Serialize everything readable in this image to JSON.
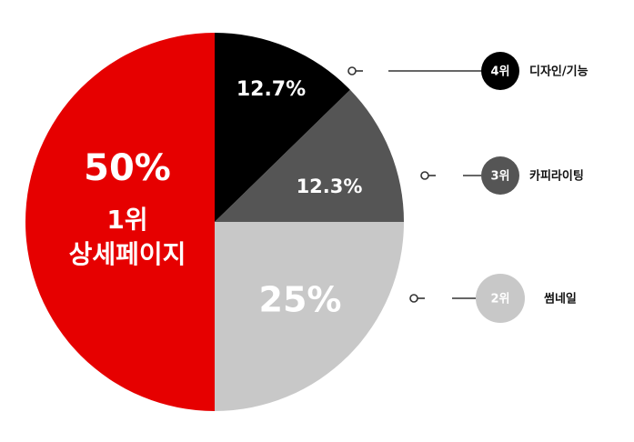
{
  "chart_data": {
    "type": "pie",
    "start_angle_deg": 0,
    "direction": "clockwise",
    "slices": [
      {
        "category": "디자인/기능",
        "rank": "4위",
        "value": 12.7,
        "value_label": "12.7%",
        "color": "#000000",
        "rank_text_color": "#ffffff"
      },
      {
        "category": "카피라이팅",
        "rank": "3위",
        "value": 12.3,
        "value_label": "12.3%",
        "color": "#555555",
        "rank_text_color": "#ffffff"
      },
      {
        "category": "썸네일",
        "rank": "2위",
        "value": 25,
        "value_label": "25%",
        "color": "#c8c8c8",
        "rank_text_color": "#ffffff"
      },
      {
        "category": "상세페이지",
        "rank": "1위",
        "value": 50,
        "value_label": "50%",
        "color": "#e60000",
        "rank_text_color": "#ffffff"
      }
    ],
    "legend_placement": "right",
    "legend_line_color": "#333333"
  }
}
